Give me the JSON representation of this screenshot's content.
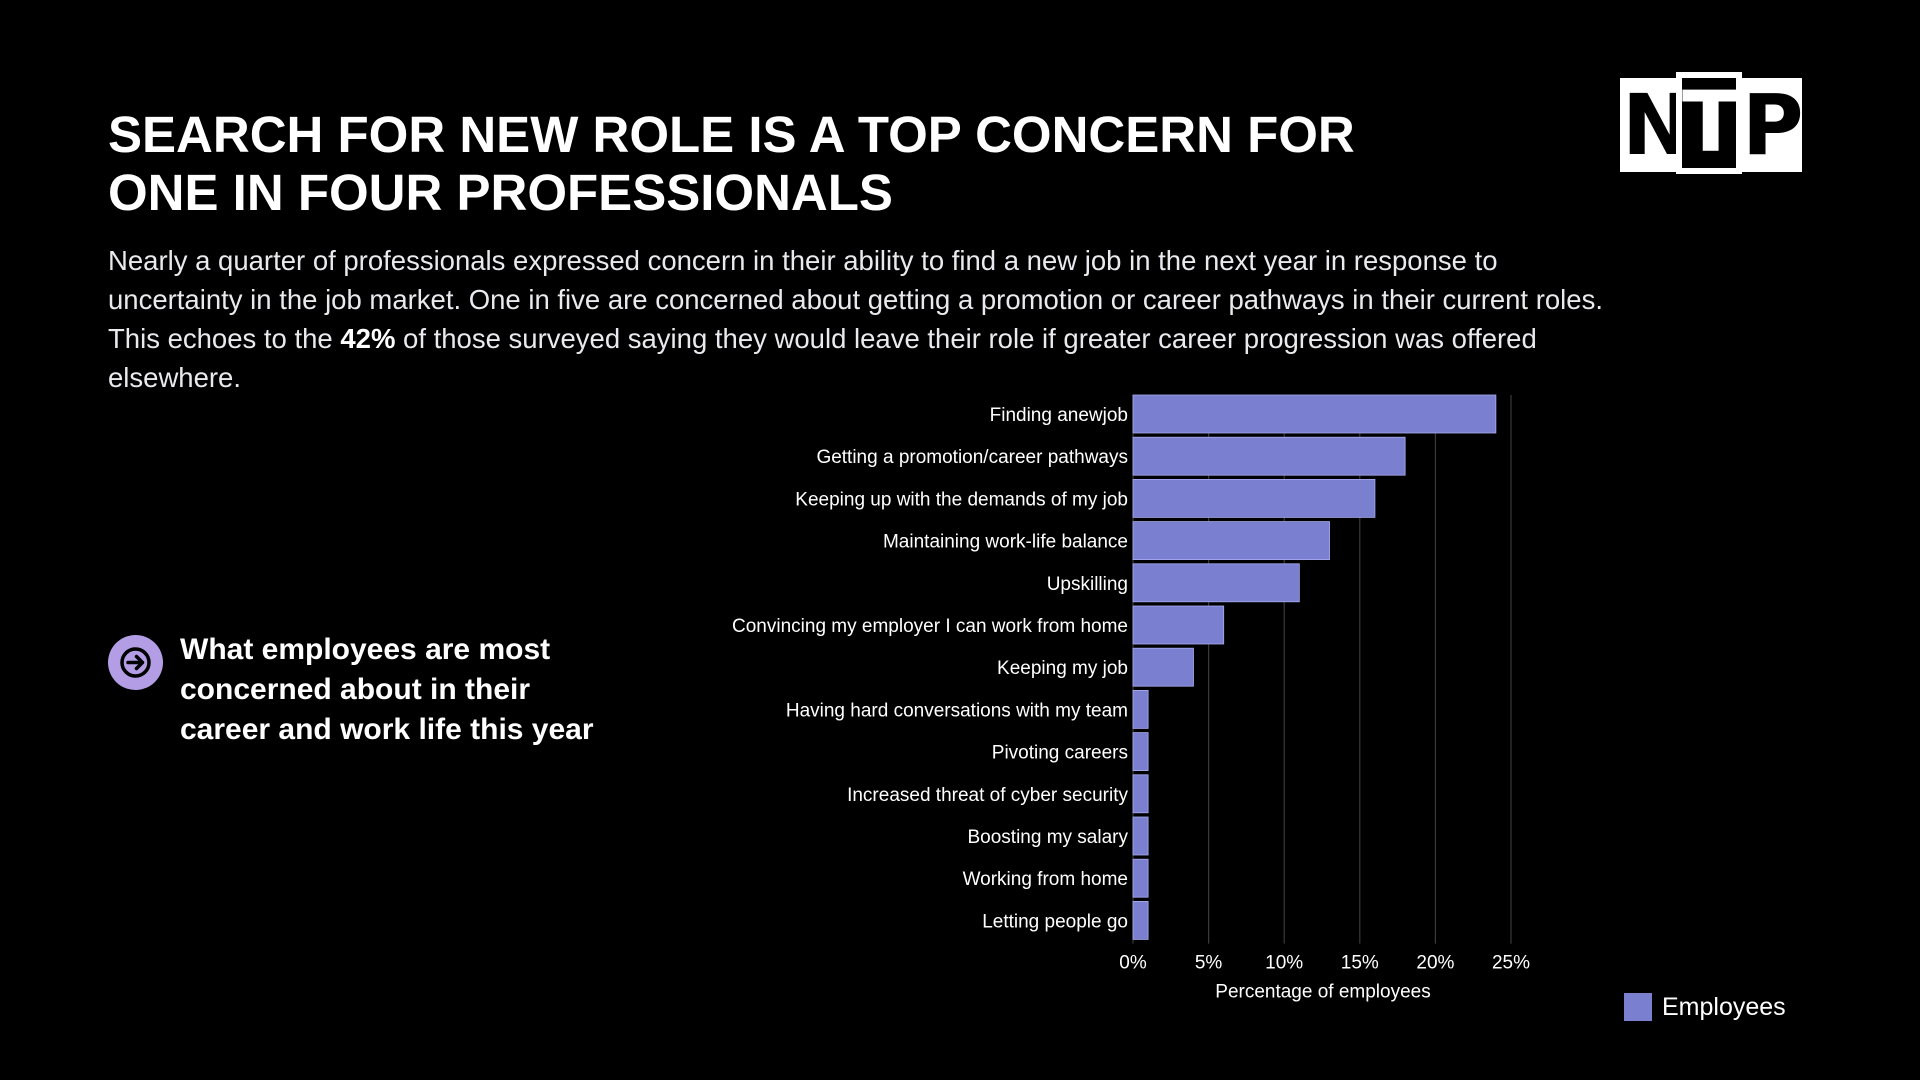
{
  "header": {
    "title_line1": "SEARCH FOR NEW ROLE IS A TOP CONCERN FOR",
    "title_line2": "ONE IN FOUR PROFESSIONALS",
    "intro_part1": "Nearly a quarter of professionals expressed concern in their ability to find a new job in the next year in response to uncertainty in the job market. One in five are concerned about getting a promotion or career pathways in their current roles. This echoes to the ",
    "intro_highlight": "42%",
    "intro_part2": " of those surveyed saying they would leave their role if greater career progression was offered elsewhere."
  },
  "logo": {
    "letters": [
      "N",
      "T",
      "P"
    ]
  },
  "callout": {
    "icon": "arrow-right-icon",
    "text": "What employees are most concerned about in their career and work life this year"
  },
  "colors": {
    "bar": "#7b7fd0",
    "accent_circle": "#b39ee6",
    "background": "#000000",
    "grid": "#3a3a3a"
  },
  "chart_data": {
    "type": "bar",
    "orientation": "horizontal",
    "categories": [
      "Finding anewjob",
      "Getting a promotion/career pathways",
      "Keeping up with the demands of my job",
      "Maintaining work-life balance",
      "Upskilling",
      "Convincing my employer I can work from home",
      "Keeping my job",
      "Having hard conversations with my team",
      "Pivoting careers",
      "Increased threat of cyber security",
      "Boosting my salary",
      "Working from home",
      "Letting people go"
    ],
    "series": [
      {
        "name": "Employees",
        "values": [
          24,
          18,
          16,
          13,
          11,
          6,
          4,
          1,
          1,
          1,
          1,
          1,
          1
        ]
      }
    ],
    "xlim": [
      0,
      25
    ],
    "xticks": [
      0,
      5,
      10,
      15,
      20,
      25
    ],
    "xtick_labels": [
      "0%",
      "5%",
      "10%",
      "15%",
      "20%",
      "25%"
    ],
    "xlabel": "Percentage of employees",
    "ylabel": "",
    "grid": true,
    "legend": {
      "position": "bottom-right",
      "label": "Employees"
    }
  }
}
